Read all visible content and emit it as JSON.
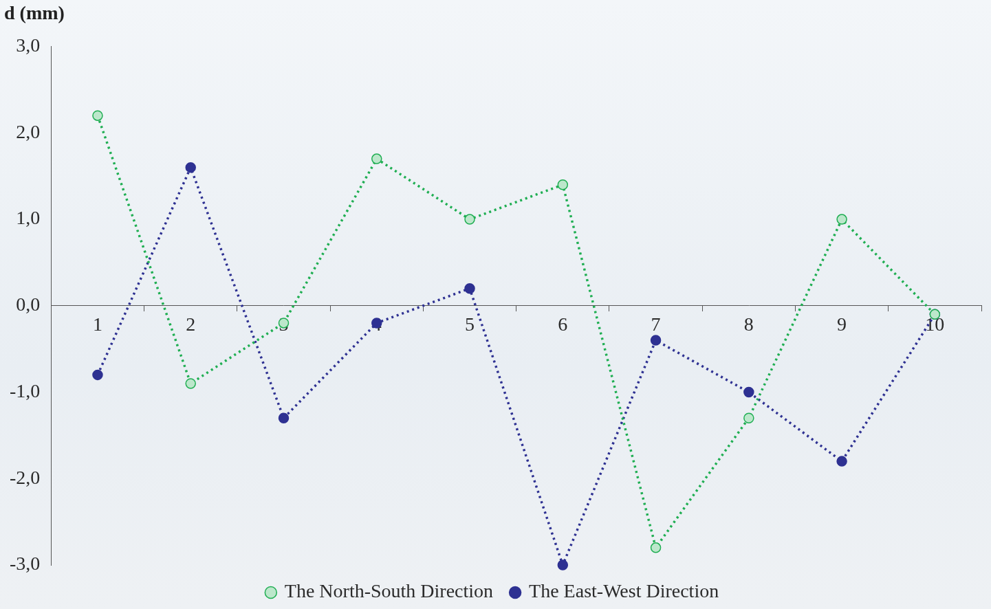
{
  "chart_data": {
    "type": "line",
    "y_label": "d (mm)",
    "categories": [
      1,
      2,
      3,
      4,
      5,
      6,
      7,
      8,
      9,
      10
    ],
    "series": [
      {
        "name": "The North-South Direction",
        "color": "#1fae52",
        "marker": "circle",
        "line_style": "dotted",
        "values": [
          2.2,
          -0.9,
          -0.2,
          1.7,
          1.0,
          1.4,
          -2.8,
          -1.3,
          1.0,
          -0.1
        ]
      },
      {
        "name": "The East-West Direction",
        "color": "#2e3192",
        "marker": "circle",
        "line_style": "dotted",
        "values": [
          -0.8,
          1.6,
          -1.3,
          -0.2,
          0.2,
          -3.0,
          -0.4,
          -1.0,
          -1.8,
          -0.1
        ]
      }
    ],
    "ylim": [
      -3,
      3
    ],
    "yticks": [
      {
        "value": 3,
        "label": "3,0"
      },
      {
        "value": 2,
        "label": "2,0"
      },
      {
        "value": 1,
        "label": "1,0"
      },
      {
        "value": 0,
        "label": "0,0"
      },
      {
        "value": -1,
        "label": "-1,0"
      },
      {
        "value": -2,
        "label": "-2,0"
      },
      {
        "value": -3,
        "label": "-3,0"
      }
    ],
    "grid": false,
    "legend": "bottom"
  }
}
